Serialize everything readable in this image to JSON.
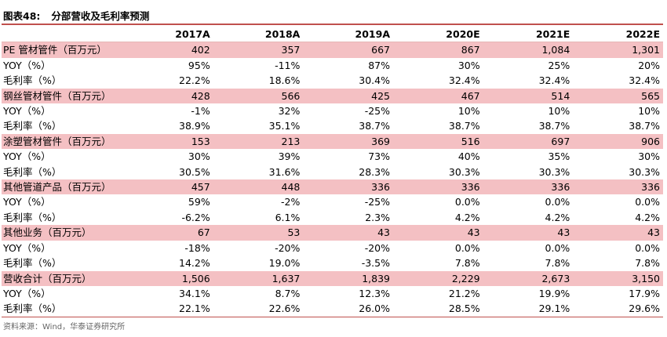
{
  "title": {
    "figure_no": "图表48:",
    "text": "分部营收及毛利率预测"
  },
  "columns": [
    "2017A",
    "2018A",
    "2019A",
    "2020E",
    "2021E",
    "2022E"
  ],
  "rows": [
    {
      "label": "PE 管材管件（百万元）",
      "values": [
        "402",
        "357",
        "667",
        "867",
        "1,084",
        "1,301"
      ],
      "highlight": true
    },
    {
      "label": "YOY（%）",
      "values": [
        "95%",
        "-11%",
        "87%",
        "30%",
        "25%",
        "20%"
      ],
      "highlight": false
    },
    {
      "label": "毛利率（%）",
      "values": [
        "22.2%",
        "18.6%",
        "30.4%",
        "32.4%",
        "32.4%",
        "32.4%"
      ],
      "highlight": false
    },
    {
      "label": "钢丝管材管件（百万元）",
      "values": [
        "428",
        "566",
        "425",
        "467",
        "514",
        "565"
      ],
      "highlight": true
    },
    {
      "label": "YOY（%）",
      "values": [
        "-1%",
        "32%",
        "-25%",
        "10%",
        "10%",
        "10%"
      ],
      "highlight": false
    },
    {
      "label": "毛利率（%）",
      "values": [
        "38.9%",
        "35.1%",
        "38.7%",
        "38.7%",
        "38.7%",
        "38.7%"
      ],
      "highlight": false
    },
    {
      "label": "涂塑管材管件（百万元）",
      "values": [
        "153",
        "213",
        "369",
        "516",
        "697",
        "906"
      ],
      "highlight": true
    },
    {
      "label": "YOY（%）",
      "values": [
        "30%",
        "39%",
        "73%",
        "40%",
        "35%",
        "30%"
      ],
      "highlight": false
    },
    {
      "label": "毛利率（%）",
      "values": [
        "30.5%",
        "31.6%",
        "28.3%",
        "30.3%",
        "30.3%",
        "30.3%"
      ],
      "highlight": false
    },
    {
      "label": "其他管道产品（百万元）",
      "values": [
        "457",
        "448",
        "336",
        "336",
        "336",
        "336"
      ],
      "highlight": true
    },
    {
      "label": "YOY（%）",
      "values": [
        "59%",
        "-2%",
        "-25%",
        "0.0%",
        "0.0%",
        "0.0%"
      ],
      "highlight": false
    },
    {
      "label": "毛利率（%）",
      "values": [
        "-6.2%",
        "6.1%",
        "2.3%",
        "4.2%",
        "4.2%",
        "4.2%"
      ],
      "highlight": false
    },
    {
      "label": "其他业务（百万元）",
      "values": [
        "67",
        "53",
        "43",
        "43",
        "43",
        "43"
      ],
      "highlight": true
    },
    {
      "label": "YOY（%）",
      "values": [
        "-18%",
        "-20%",
        "-20%",
        "0.0%",
        "0.0%",
        "0.0%"
      ],
      "highlight": false
    },
    {
      "label": "毛利率（%）",
      "values": [
        "14.2%",
        "19.0%",
        "-3.5%",
        "7.8%",
        "7.8%",
        "7.8%"
      ],
      "highlight": false
    },
    {
      "label": "营收合计（百万元）",
      "values": [
        "1,506",
        "1,637",
        "1,839",
        "2,229",
        "2,673",
        "3,150"
      ],
      "highlight": true
    },
    {
      "label": "YOY（%）",
      "values": [
        "34.1%",
        "8.7%",
        "12.3%",
        "21.2%",
        "19.9%",
        "17.9%"
      ],
      "highlight": false
    },
    {
      "label": "毛利率（%）",
      "values": [
        "22.1%",
        "22.6%",
        "26.0%",
        "28.5%",
        "29.1%",
        "29.6%"
      ],
      "highlight": false
    }
  ],
  "source": "资料来源：Wind，华泰证券研究所",
  "colors": {
    "highlight_row": "#f4c0c3",
    "rule": "#c0504d"
  }
}
